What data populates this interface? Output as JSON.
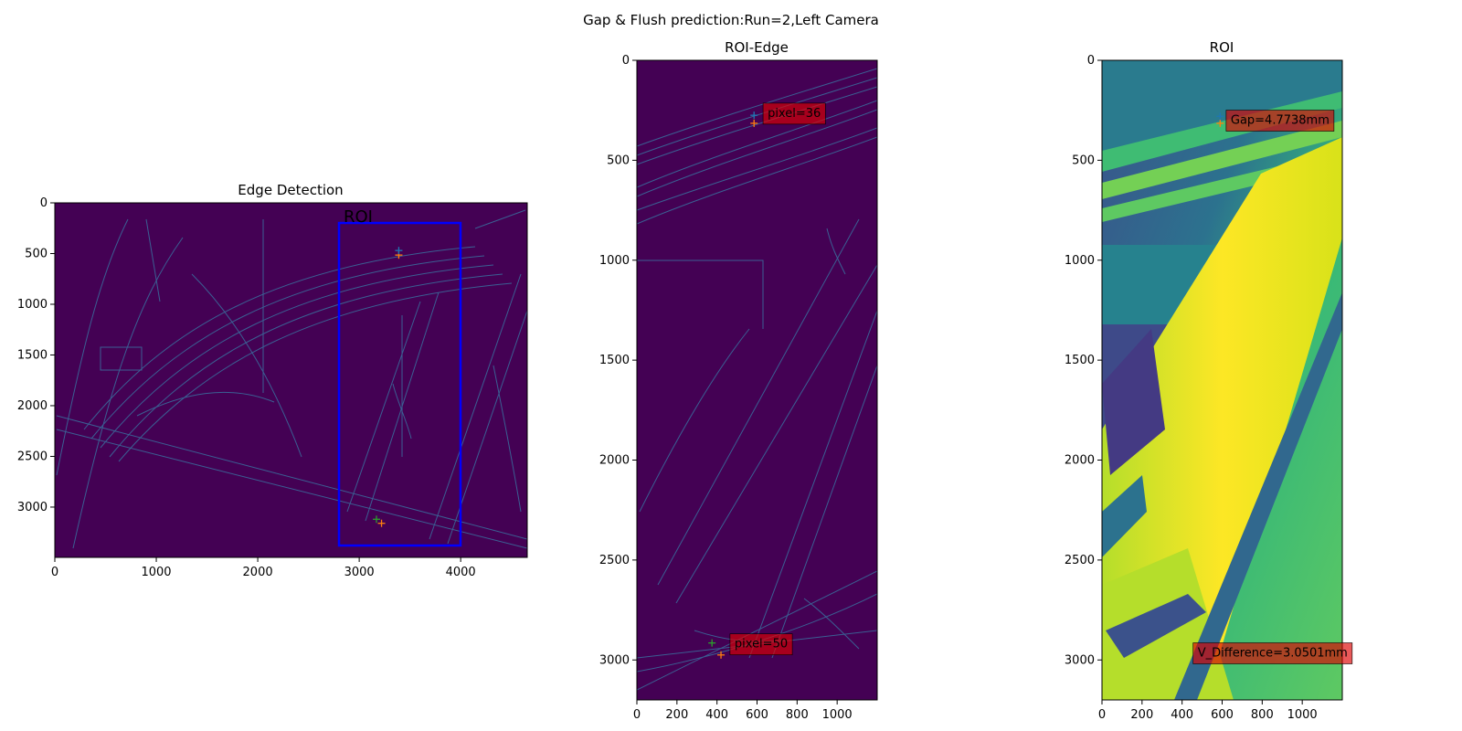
{
  "figure": {
    "suptitle": "Gap & Flush prediction:Run=2,Left Camera"
  },
  "colors": {
    "edge_bg": "#440154",
    "edge_line": "#3b5f93",
    "roi_box": "#0000ff",
    "label_box": "#dd0000",
    "marker_orange": "#ff7f0e",
    "marker_green": "#2ca02c",
    "marker_blue": "#1f77b4"
  },
  "chart_data": [
    {
      "type": "image",
      "title": "Edge Detection",
      "xlim": [
        0,
        4656
      ],
      "ylim": [
        3496,
        0
      ],
      "xticks": [
        0,
        1000,
        2000,
        3000,
        4000
      ],
      "yticks": [
        0,
        500,
        1000,
        1500,
        2000,
        2500,
        3000
      ],
      "roi_rect": {
        "label": "ROI",
        "x0": 2800,
        "y0": 200,
        "x1": 4000,
        "y1": 3400
      },
      "markers": [
        {
          "x": 3390,
          "y": 515,
          "color": "#ff7f0e"
        },
        {
          "x": 3390,
          "y": 470,
          "color": "#1f77b4"
        },
        {
          "x": 3170,
          "y": 3120,
          "color": "#2ca02c"
        },
        {
          "x": 3220,
          "y": 3160,
          "color": "#ff7f0e"
        }
      ]
    },
    {
      "type": "image",
      "title": "ROI-Edge",
      "xlim": [
        0,
        1200
      ],
      "ylim": [
        3200,
        0
      ],
      "xticks": [
        0,
        200,
        400,
        600,
        800,
        1000
      ],
      "yticks": [
        0,
        500,
        1000,
        1500,
        2000,
        2500,
        3000
      ],
      "annotations": [
        {
          "text": "pixel=36",
          "x": 630,
          "y": 260
        },
        {
          "text": "pixel=50",
          "x": 465,
          "y": 2915
        }
      ],
      "markers": [
        {
          "x": 585,
          "y": 315,
          "color": "#ff7f0e"
        },
        {
          "x": 585,
          "y": 275,
          "color": "#1f77b4"
        },
        {
          "x": 375,
          "y": 2915,
          "color": "#2ca02c"
        },
        {
          "x": 420,
          "y": 2975,
          "color": "#ff7f0e"
        }
      ]
    },
    {
      "type": "image",
      "title": "ROI",
      "xlim": [
        0,
        1200
      ],
      "ylim": [
        3200,
        0
      ],
      "xticks": [
        0,
        200,
        400,
        600,
        800,
        1000
      ],
      "yticks": [
        0,
        500,
        1000,
        1500,
        2000,
        2500,
        3000
      ],
      "annotations": [
        {
          "text": "Gap=4.7738mm",
          "x": 620,
          "y": 295
        },
        {
          "text": "V_Difference=3.0501mm",
          "x": 455,
          "y": 2960
        }
      ],
      "markers": [
        {
          "x": 590,
          "y": 315,
          "color": "#ff7f0e"
        },
        {
          "x": 590,
          "y": 280,
          "color": "#1f77b4"
        }
      ]
    }
  ]
}
